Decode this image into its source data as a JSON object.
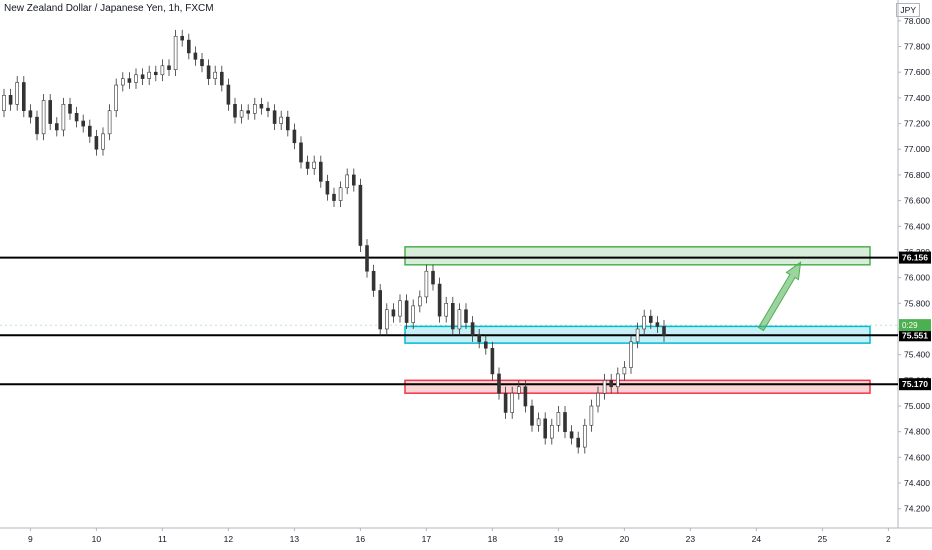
{
  "title": "New Zealand Dollar / Japanese Yen, 1h, FXCM",
  "currency": "JPY",
  "chart_data": {
    "type": "candlestick",
    "y_range": [
      74.05,
      78.1
    ],
    "y_ticks": [
      "78.000",
      "77.800",
      "77.600",
      "77.400",
      "77.200",
      "77.000",
      "76.800",
      "76.600",
      "76.400",
      "76.200",
      "76.000",
      "75.800",
      "75.600",
      "75.400",
      "75.200",
      "75.000",
      "74.800",
      "74.600",
      "74.400",
      "74.200"
    ],
    "y_tick_values": [
      78.0,
      77.8,
      77.6,
      77.4,
      77.2,
      77.0,
      76.8,
      76.6,
      76.4,
      76.2,
      76.0,
      75.8,
      75.6,
      75.4,
      75.2,
      75.0,
      74.8,
      74.6,
      74.4,
      74.2
    ],
    "x_ticks": [
      "9",
      "10",
      "11",
      "12",
      "13",
      "16",
      "17",
      "18",
      "19",
      "20",
      "23",
      "24",
      "25",
      "2"
    ],
    "x_tick_index": [
      4,
      14,
      24,
      34,
      44,
      54,
      64,
      74,
      84,
      94,
      104,
      114,
      124,
      134
    ],
    "series": [
      {
        "close": [
          77.42,
          77.35,
          77.52,
          77.3,
          77.25,
          77.12,
          77.38,
          77.2,
          77.15,
          77.35,
          77.28,
          77.22,
          77.18,
          77.1,
          77.0,
          77.12,
          77.3,
          77.5,
          77.55,
          77.52,
          77.58,
          77.55,
          77.6,
          77.58,
          77.65,
          77.62,
          77.88,
          77.85,
          77.75,
          77.7,
          77.65,
          77.55,
          77.6,
          77.5,
          77.35,
          77.25,
          77.3,
          77.28,
          77.35,
          77.32,
          77.3,
          77.2,
          77.25,
          77.15,
          77.05,
          76.9,
          76.85,
          76.9,
          76.75,
          76.65,
          76.6,
          76.7,
          76.8,
          76.72,
          76.25,
          76.05,
          75.9,
          75.6,
          75.75,
          75.7,
          75.82,
          75.65,
          75.78,
          75.85,
          76.05,
          75.95,
          75.7,
          75.8,
          75.6,
          75.75,
          75.65,
          75.55,
          75.5,
          75.45,
          75.25,
          75.1,
          74.95,
          75.1,
          75.15,
          75.0,
          74.85,
          74.9,
          74.75,
          74.85,
          74.95,
          74.8,
          74.75,
          74.68,
          74.85,
          75.0,
          75.1,
          75.2,
          75.15,
          75.25,
          75.3,
          75.5,
          75.6,
          75.7,
          75.65,
          75.62,
          75.55
        ],
        "open": [
          77.3,
          77.42,
          77.35,
          77.52,
          77.3,
          77.25,
          77.12,
          77.38,
          77.2,
          77.15,
          77.35,
          77.28,
          77.22,
          77.18,
          77.1,
          77.0,
          77.12,
          77.3,
          77.5,
          77.55,
          77.52,
          77.58,
          77.55,
          77.6,
          77.58,
          77.65,
          77.62,
          77.88,
          77.85,
          77.75,
          77.7,
          77.65,
          77.55,
          77.6,
          77.5,
          77.35,
          77.25,
          77.3,
          77.28,
          77.35,
          77.32,
          77.3,
          77.2,
          77.25,
          77.15,
          77.05,
          76.9,
          76.85,
          76.9,
          76.75,
          76.65,
          76.6,
          76.7,
          76.8,
          76.72,
          76.25,
          76.05,
          75.9,
          75.6,
          75.75,
          75.7,
          75.82,
          75.65,
          75.78,
          75.85,
          76.05,
          75.95,
          75.7,
          75.8,
          75.6,
          75.75,
          75.65,
          75.55,
          75.5,
          75.45,
          75.25,
          75.1,
          74.95,
          75.1,
          75.15,
          75.0,
          74.85,
          74.9,
          74.75,
          74.85,
          74.95,
          74.8,
          74.75,
          74.68,
          74.85,
          75.0,
          75.1,
          75.2,
          75.15,
          75.25,
          75.3,
          75.5,
          75.6,
          75.7,
          75.65,
          75.62
        ]
      }
    ],
    "levels": [
      {
        "label": "76.156",
        "value": 76.156
      },
      {
        "label": "75.551",
        "value": 75.551
      },
      {
        "label": "75.170",
        "value": 75.17
      }
    ],
    "zones": [
      {
        "low": 76.1,
        "high": 76.24,
        "color": "#4caf50"
      },
      {
        "low": 75.49,
        "high": 75.62,
        "color": "#00bcd4"
      },
      {
        "low": 75.1,
        "high": 75.2,
        "color": "#f23645"
      }
    ],
    "current_price": {
      "label": "0:29",
      "value": 75.63
    },
    "arrow": {
      "from": {
        "index": 115,
        "value": 75.6
      },
      "to": {
        "index": 121,
        "value": 76.12
      },
      "color": "#4caf50"
    }
  }
}
